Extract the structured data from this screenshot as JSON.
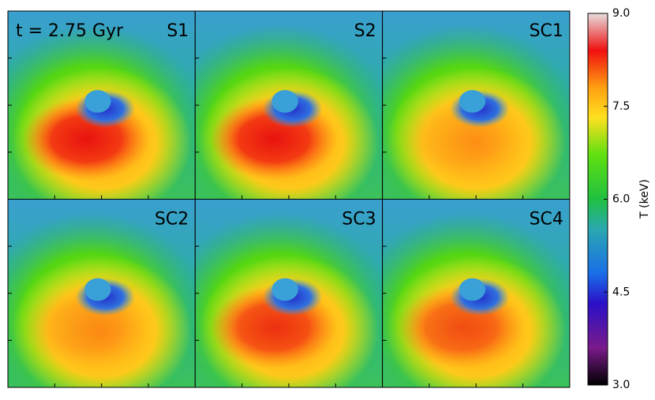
{
  "chart_data": {
    "type": "heatmap",
    "annotation": "t = 2.75 Gyr",
    "panels": [
      "S1",
      "S2",
      "SC1",
      "SC2",
      "SC3",
      "SC4"
    ],
    "colorbar": {
      "label": "T (keV)",
      "clim": [
        3.0,
        9.0
      ],
      "cticks": [
        {
          "value": 3,
          "label": "3.0"
        },
        {
          "value": 4.5,
          "label": "4.5"
        },
        {
          "value": 6,
          "label": "6.0"
        },
        {
          "value": 7.5,
          "label": "7.5"
        },
        {
          "value": 9,
          "label": "9.0"
        }
      ]
    }
  }
}
